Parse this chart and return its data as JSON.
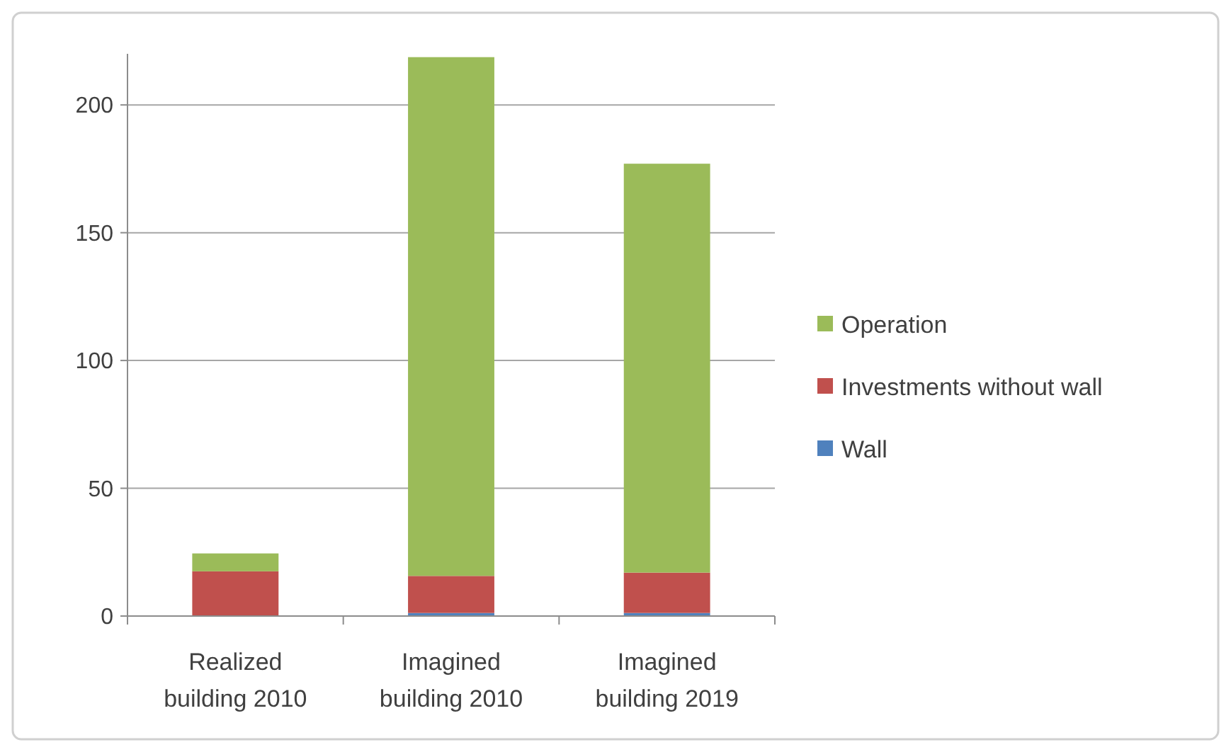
{
  "chart_data": {
    "type": "bar",
    "stacked": true,
    "categories": [
      "Realized building 2010",
      "Imagined building 2010",
      "Imagined building 2019"
    ],
    "series": [
      {
        "name": "Wall",
        "color": "#4f81bd",
        "values": [
          0,
          1.2,
          1.2
        ]
      },
      {
        "name": "Investments without wall",
        "color": "#c0504d",
        "values": [
          17.5,
          14.5,
          15.8
        ]
      },
      {
        "name": "Operation",
        "color": "#9bbb59",
        "values": [
          7,
          203,
          160
        ]
      }
    ],
    "ylim": [
      0,
      220
    ],
    "yticks": [
      0,
      50,
      100,
      150,
      200
    ],
    "grid": "y",
    "legend": "right"
  }
}
